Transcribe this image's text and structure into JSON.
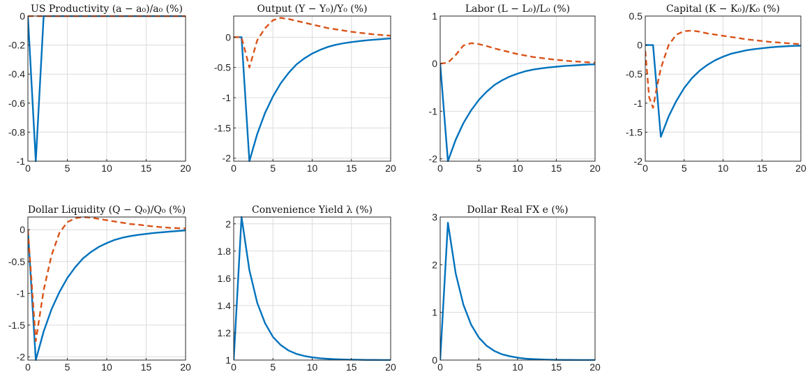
{
  "colors": {
    "solid": "#0072BD",
    "dashed": "#D95319"
  },
  "chart_data": [
    {
      "type": "line",
      "title": "US Productivity (a − a₀)/a₀ (%)",
      "xlim": [
        0,
        20
      ],
      "ylim": [
        -1,
        0
      ],
      "xticks": [
        0,
        5,
        10,
        15,
        20
      ],
      "yticks": [
        -1,
        -0.8,
        -0.6,
        -0.4,
        -0.2,
        0
      ],
      "ytick_labels": [
        "-1",
        "-0.8",
        "-0.6",
        "-0.4",
        "-0.2",
        "0"
      ],
      "grid": true,
      "series": [
        {
          "style": "solid",
          "x": [
            0,
            1,
            2,
            3,
            4,
            5,
            6,
            7,
            8,
            9,
            10,
            11,
            12,
            13,
            14,
            15,
            16,
            17,
            18,
            19,
            20
          ],
          "y": [
            0,
            -1,
            0,
            0,
            0,
            0,
            0,
            0,
            0,
            0,
            0,
            0,
            0,
            0,
            0,
            0,
            0,
            0,
            0,
            0,
            0
          ]
        },
        {
          "style": "dashed",
          "x": [
            0,
            20
          ],
          "y": [
            0,
            0
          ]
        }
      ]
    },
    {
      "type": "line",
      "title": "Output (Y − Y₀)/Y₀ (%)",
      "xlim": [
        0,
        20
      ],
      "ylim": [
        -2.05,
        0.35
      ],
      "xticks": [
        0,
        5,
        10,
        15,
        20
      ],
      "yticks": [
        -2,
        -1.5,
        -1,
        -0.5,
        0
      ],
      "ytick_labels": [
        "-2",
        "-1.5",
        "-1",
        "-0.5",
        "0"
      ],
      "grid": true,
      "series": [
        {
          "style": "solid",
          "x": [
            0,
            1,
            2,
            3,
            4,
            5,
            6,
            7,
            8,
            9,
            10,
            11,
            12,
            13,
            14,
            15,
            16,
            17,
            18,
            19,
            20
          ],
          "y": [
            0,
            0,
            -2.05,
            -1.6,
            -1.25,
            -0.98,
            -0.76,
            -0.59,
            -0.45,
            -0.35,
            -0.27,
            -0.21,
            -0.16,
            -0.125,
            -0.1,
            -0.08,
            -0.065,
            -0.05,
            -0.04,
            -0.03,
            -0.02
          ]
        },
        {
          "style": "dashed",
          "x": [
            0,
            1,
            2,
            3,
            4,
            5,
            6,
            7,
            8,
            9,
            10,
            11,
            12,
            13,
            14,
            15,
            16,
            17,
            18,
            19,
            20
          ],
          "y": [
            0,
            0,
            -0.5,
            -0.05,
            0.15,
            0.28,
            0.32,
            0.3,
            0.27,
            0.24,
            0.21,
            0.18,
            0.15,
            0.13,
            0.11,
            0.09,
            0.075,
            0.06,
            0.045,
            0.035,
            0.025
          ]
        }
      ]
    },
    {
      "type": "line",
      "title": "Labor (L − L₀)/L₀ (%)",
      "xlim": [
        0,
        20
      ],
      "ylim": [
        -2.05,
        1
      ],
      "xticks": [
        0,
        5,
        10,
        15,
        20
      ],
      "yticks": [
        -2,
        -1,
        0,
        1
      ],
      "ytick_labels": [
        "-2",
        "-1",
        "0",
        "1"
      ],
      "grid": true,
      "series": [
        {
          "style": "solid",
          "x": [
            0,
            1,
            2,
            3,
            4,
            5,
            6,
            7,
            8,
            9,
            10,
            11,
            12,
            13,
            14,
            15,
            16,
            17,
            18,
            19,
            20
          ],
          "y": [
            0,
            -2.05,
            -1.6,
            -1.25,
            -0.98,
            -0.76,
            -0.59,
            -0.45,
            -0.35,
            -0.27,
            -0.21,
            -0.16,
            -0.125,
            -0.1,
            -0.08,
            -0.065,
            -0.05,
            -0.04,
            -0.03,
            -0.02,
            -0.015
          ]
        },
        {
          "style": "dashed",
          "x": [
            0,
            1,
            2,
            3,
            4,
            5,
            6,
            7,
            8,
            9,
            10,
            11,
            12,
            13,
            14,
            15,
            16,
            17,
            18,
            19,
            20
          ],
          "y": [
            0,
            0.02,
            0.18,
            0.38,
            0.43,
            0.41,
            0.37,
            0.32,
            0.28,
            0.24,
            0.2,
            0.17,
            0.14,
            0.12,
            0.1,
            0.08,
            0.065,
            0.05,
            0.04,
            0.03,
            0.02
          ]
        }
      ]
    },
    {
      "type": "line",
      "title": "Capital (K − K₀)/K₀ (%)",
      "xlim": [
        0,
        20
      ],
      "ylim": [
        -2,
        0.5
      ],
      "xticks": [
        0,
        5,
        10,
        15,
        20
      ],
      "yticks": [
        -2,
        -1.5,
        -1,
        -0.5,
        0,
        0.5
      ],
      "ytick_labels": [
        "-2",
        "-1.5",
        "-1",
        "-0.5",
        "0",
        "0.5"
      ],
      "grid": true,
      "series": [
        {
          "style": "solid",
          "x": [
            0,
            1,
            2,
            3,
            4,
            5,
            6,
            7,
            8,
            9,
            10,
            11,
            12,
            13,
            14,
            15,
            16,
            17,
            18,
            19,
            20
          ],
          "y": [
            0,
            0,
            -1.58,
            -1.23,
            -0.96,
            -0.74,
            -0.57,
            -0.44,
            -0.34,
            -0.26,
            -0.2,
            -0.15,
            -0.12,
            -0.09,
            -0.07,
            -0.055,
            -0.04,
            -0.03,
            -0.022,
            -0.015,
            -0.01
          ]
        },
        {
          "style": "dashed",
          "x": [
            0,
            0.5,
            1,
            1.5,
            2,
            3,
            4,
            5,
            6,
            7,
            8,
            9,
            10,
            11,
            12,
            13,
            14,
            15,
            16,
            17,
            18,
            19,
            20
          ],
          "y": [
            -0.1,
            -0.9,
            -1.08,
            -0.72,
            -0.4,
            0.0,
            0.18,
            0.24,
            0.25,
            0.23,
            0.2,
            0.18,
            0.16,
            0.14,
            0.12,
            0.1,
            0.085,
            0.07,
            0.055,
            0.045,
            0.035,
            0.025,
            0.015
          ]
        }
      ]
    },
    {
      "type": "line",
      "title": "Dollar Liquidity (Q − Q₀)/Q₀ (%)",
      "xlim": [
        0,
        20
      ],
      "ylim": [
        -2.05,
        0.2
      ],
      "xticks": [
        0,
        5,
        10,
        15,
        20
      ],
      "yticks": [
        -2,
        -1.5,
        -1,
        -0.5,
        0
      ],
      "ytick_labels": [
        "-2",
        "-1.5",
        "-1",
        "-0.5",
        "0"
      ],
      "grid": true,
      "series": [
        {
          "style": "solid",
          "x": [
            0,
            1,
            2,
            3,
            4,
            5,
            6,
            7,
            8,
            9,
            10,
            11,
            12,
            13,
            14,
            15,
            16,
            17,
            18,
            19,
            20
          ],
          "y": [
            0,
            -2.05,
            -1.6,
            -1.25,
            -0.98,
            -0.76,
            -0.59,
            -0.45,
            -0.35,
            -0.27,
            -0.21,
            -0.16,
            -0.125,
            -0.1,
            -0.08,
            -0.065,
            -0.05,
            -0.04,
            -0.03,
            -0.02,
            -0.01
          ]
        },
        {
          "style": "dashed",
          "x": [
            0,
            1,
            2,
            3,
            4,
            5,
            6,
            7,
            8,
            9,
            10,
            11,
            12,
            13,
            14,
            15,
            16,
            17,
            18,
            19,
            20
          ],
          "y": [
            0,
            -1.75,
            -0.95,
            -0.4,
            -0.05,
            0.12,
            0.18,
            0.2,
            0.19,
            0.17,
            0.15,
            0.13,
            0.11,
            0.09,
            0.08,
            0.065,
            0.05,
            0.04,
            0.03,
            0.025,
            0.02
          ]
        }
      ]
    },
    {
      "type": "line",
      "title": "Convenience Yield λ (%)",
      "xlim": [
        0,
        20
      ],
      "ylim": [
        1,
        2.05
      ],
      "xticks": [
        0,
        5,
        10,
        15,
        20
      ],
      "yticks": [
        1,
        1.2,
        1.4,
        1.6,
        1.8,
        2
      ],
      "ytick_labels": [
        "1",
        "1.2",
        "1.4",
        "1.6",
        "1.8",
        "2"
      ],
      "grid": true,
      "series": [
        {
          "style": "solid",
          "x": [
            0,
            1,
            2,
            3,
            4,
            5,
            6,
            7,
            8,
            9,
            10,
            11,
            12,
            13,
            14,
            15,
            16,
            17,
            18,
            19,
            20
          ],
          "y": [
            1,
            2.05,
            1.66,
            1.42,
            1.27,
            1.17,
            1.11,
            1.07,
            1.045,
            1.03,
            1.02,
            1.013,
            1.009,
            1.006,
            1.004,
            1.003,
            1.002,
            1.001,
            1.001,
            1.0,
            1.0
          ]
        }
      ]
    },
    {
      "type": "line",
      "title": "Dollar Real FX e (%)",
      "xlim": [
        0,
        20
      ],
      "ylim": [
        0,
        3
      ],
      "xticks": [
        0,
        5,
        10,
        15,
        20
      ],
      "yticks": [
        0,
        1,
        2,
        3
      ],
      "ytick_labels": [
        "0",
        "1",
        "2",
        "3"
      ],
      "grid": true,
      "series": [
        {
          "style": "solid",
          "x": [
            0,
            1,
            2,
            3,
            4,
            5,
            6,
            7,
            8,
            9,
            10,
            11,
            12,
            13,
            14,
            15,
            16,
            17,
            18,
            19,
            20
          ],
          "y": [
            0,
            2.88,
            1.82,
            1.16,
            0.74,
            0.47,
            0.3,
            0.19,
            0.12,
            0.08,
            0.05,
            0.03,
            0.02,
            0.013,
            0.008,
            0.005,
            0.003,
            0.002,
            0.001,
            0.001,
            0.0
          ]
        }
      ]
    }
  ]
}
